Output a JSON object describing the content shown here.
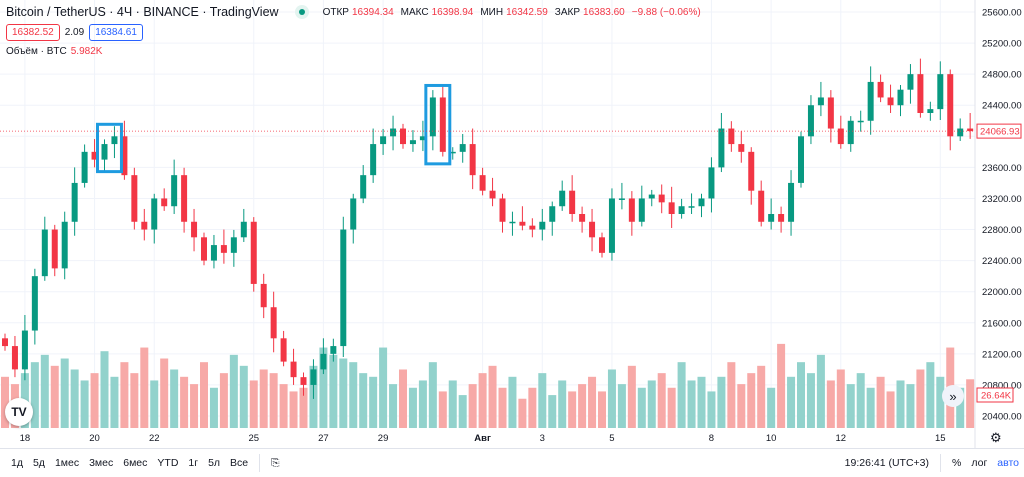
{
  "header": {
    "title": "Bitcoin / TetherUS · 4Ч · BINANCE · TradingView",
    "open_label": "ОТКР",
    "open": "16394.34",
    "high_label": "МАКС",
    "high": "16398.94",
    "low_label": "МИН",
    "low": "16342.59",
    "close_label": "ЗАКР",
    "close": "16383.60",
    "change": "−9.88 (−0.06%)",
    "bid": "16382.52",
    "spread": "2.09",
    "ask": "16384.61",
    "volume_label": "Объём · BTC",
    "volume": "5.982K"
  },
  "colors": {
    "up": "#089981",
    "down": "#f23645",
    "up_volume": "#92d2cc",
    "down_volume": "#f7a9a7",
    "highlight": "#1e9be0"
  },
  "chart_data": {
    "type": "candlestick",
    "price_ticks": [
      25600,
      25200,
      24800,
      24400,
      24000,
      23600,
      23200,
      22800,
      22400,
      22000,
      21600,
      21200,
      20800,
      20400
    ],
    "price_tick_labels": [
      "25600.00",
      "25200.00",
      "24800.00",
      "24400.00",
      "",
      "23600.00",
      "23200.00",
      "22800.00",
      "22400.00",
      "22000.00",
      "21600.00",
      "21200.00",
      "20800.00",
      "20400.00"
    ],
    "ylim": [
      20270,
      25720
    ],
    "first_open": 21400,
    "closes": [
      21300,
      21000,
      21500,
      22200,
      22800,
      22300,
      22900,
      23400,
      23800,
      23700,
      23900,
      24000,
      23500,
      22900,
      22800,
      23200,
      23100,
      23500,
      22900,
      22700,
      22400,
      22600,
      22500,
      22700,
      22900,
      22100,
      21800,
      21400,
      21100,
      20900,
      20800,
      21000,
      21200,
      21300,
      22800,
      23200,
      23500,
      23900,
      24000,
      24100,
      23900,
      23950,
      24000,
      24500,
      23800,
      23800,
      23900,
      23500,
      23300,
      23200,
      22900,
      22900,
      22850,
      22800,
      22900,
      23100,
      23300,
      23000,
      22900,
      22700,
      22500,
      23200,
      23200,
      22900,
      23200,
      23250,
      23150,
      23000,
      23100,
      23100,
      23200,
      23600,
      24100,
      23900,
      23800,
      23300,
      22900,
      23000,
      22900,
      23400,
      24000,
      24400,
      24500,
      24100,
      23900,
      24200,
      24200,
      24700,
      24500,
      24400,
      24600,
      24800,
      24300,
      24350,
      24800,
      24000,
      24100,
      24066.93
    ],
    "volumes_k": [
      28,
      24,
      30,
      36,
      40,
      34,
      38,
      32,
      26,
      30,
      42,
      28,
      36,
      30,
      44,
      26,
      38,
      32,
      28,
      24,
      36,
      22,
      30,
      40,
      34,
      26,
      32,
      30,
      24,
      20,
      22,
      34,
      44,
      40,
      38,
      36,
      30,
      28,
      44,
      24,
      32,
      22,
      26,
      36,
      20,
      26,
      18,
      24,
      30,
      34,
      22,
      28,
      16,
      22,
      30,
      18,
      26,
      20,
      24,
      28,
      20,
      32,
      24,
      34,
      22,
      26,
      30,
      22,
      36,
      26,
      28,
      20,
      28,
      36,
      24,
      30,
      34,
      22,
      46,
      28,
      36,
      30,
      40,
      26,
      32,
      24,
      30,
      22,
      28,
      20,
      26,
      24,
      32,
      36,
      28,
      44,
      22,
      26.64
    ],
    "volume_scale_max_k": 70,
    "last_price": "24066.93",
    "last_volume": "26.64K",
    "x_labels": [
      {
        "i": 2,
        "t": "18"
      },
      {
        "i": 9,
        "t": "20"
      },
      {
        "i": 15,
        "t": "22"
      },
      {
        "i": 25,
        "t": "25"
      },
      {
        "i": 32,
        "t": "27"
      },
      {
        "i": 38,
        "t": "29"
      },
      {
        "i": 48,
        "t": "Авг"
      },
      {
        "i": 54,
        "t": "3"
      },
      {
        "i": 61,
        "t": "5"
      },
      {
        "i": 71,
        "t": "8"
      },
      {
        "i": 77,
        "t": "10"
      },
      {
        "i": 84,
        "t": "12"
      },
      {
        "i": 94,
        "t": "15"
      }
    ],
    "highlights": [
      [
        10,
        11
      ],
      [
        43,
        44
      ]
    ]
  },
  "toolbar": {
    "ranges": [
      "1д",
      "5д",
      "1мес",
      "3мес",
      "6мес",
      "YTD",
      "1г",
      "5л",
      "Все"
    ],
    "time": "19:26:41 (UTC+3)",
    "percent": "%",
    "log": "лог",
    "auto": "авто"
  },
  "logo": "TV"
}
